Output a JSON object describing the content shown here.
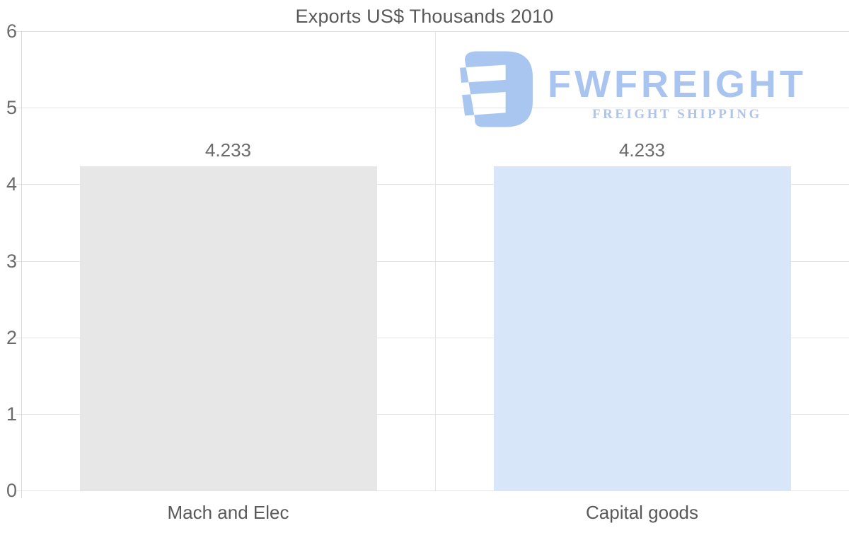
{
  "title": "Exports US$ Thousands 2010",
  "watermark": {
    "brand": "FWFREIGHT",
    "tagline": "FREIGHT SHIPPING",
    "brand_color": "#a9c4ef",
    "tagline_color": "#b0c3ea",
    "icon_color": "#a9c6f0",
    "icon": "fwfreight-logo-mark"
  },
  "chart_data": {
    "type": "bar",
    "title": "Exports US$ Thousands 2010",
    "categories": [
      "Mach and Elec",
      "Capital goods"
    ],
    "values": [
      4.233,
      4.233
    ],
    "value_labels": [
      "4.233",
      "4.233"
    ],
    "series_colors": [
      "#e7e7e7",
      "#d7e6f9"
    ],
    "xlabel": "",
    "ylabel": "",
    "ylim": [
      0,
      6
    ],
    "yticks": [
      "0",
      "1",
      "2",
      "3",
      "4",
      "5",
      "6"
    ],
    "grid": true,
    "legend": false,
    "label_color": "#6b6b6b",
    "grid_color": "#e4e4e4",
    "axis_color": "#d9d9d9"
  }
}
